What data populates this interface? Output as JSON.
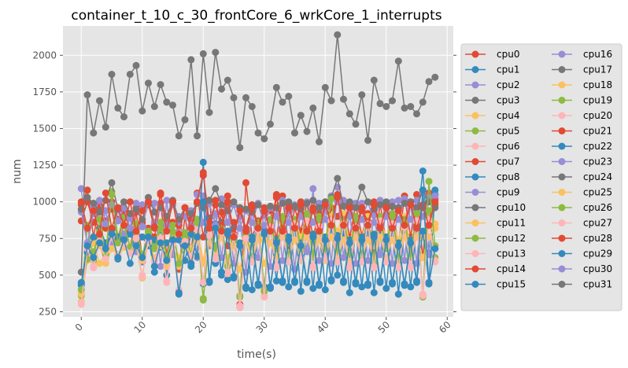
{
  "chart_data": {
    "type": "line",
    "title": "container_t_10_c_30_frontCore_6_wrkCore_1_interrupts",
    "xlabel": "time(s)",
    "ylabel": "num",
    "xlim": [
      -3,
      61
    ],
    "ylim": [
      215,
      2200
    ],
    "x_ticks": [
      0,
      10,
      20,
      30,
      40,
      50,
      60
    ],
    "y_ticks": [
      250,
      500,
      750,
      1000,
      1250,
      1500,
      1750,
      2000
    ],
    "grid": true,
    "legend_position": "right, outside plot, two columns",
    "x": [
      0,
      1,
      2,
      3,
      4,
      5,
      6,
      7,
      8,
      9,
      10,
      11,
      12,
      13,
      14,
      15,
      16,
      17,
      18,
      19,
      20,
      21,
      22,
      23,
      24,
      25,
      26,
      27,
      28,
      29,
      30,
      31,
      32,
      33,
      34,
      35,
      36,
      37,
      38,
      39,
      40,
      41,
      42,
      43,
      44,
      45,
      46,
      47,
      48,
      49,
      50,
      51,
      52,
      53,
      54,
      55,
      56,
      57,
      58
    ],
    "series": [
      {
        "name": "cpu0",
        "color": "#E24A33",
        "values": [
          980,
          1080,
          760,
          980,
          870,
          950,
          740,
          890,
          680,
          930,
          620,
          820,
          760,
          990,
          640,
          860,
          540,
          900,
          650,
          1060,
          760,
          1010,
          630,
          930,
          700,
          860,
          300,
          1130,
          760,
          870,
          910,
          940,
          750,
          1040,
          700,
          960,
          800,
          990,
          760,
          930,
          650,
          960,
          900,
          990,
          760,
          980,
          770,
          920,
          650,
          990,
          720,
          970,
          700,
          1040,
          760,
          1050,
          620,
          1060,
          980
        ]
      },
      {
        "name": "cpu1",
        "color": "#348ABD",
        "values": [
          430,
          650,
          640,
          820,
          720,
          770,
          610,
          760,
          650,
          800,
          590,
          750,
          520,
          770,
          500,
          740,
          370,
          700,
          560,
          880,
          440,
          890,
          580,
          860,
          470,
          820,
          280,
          780,
          400,
          820,
          420,
          840,
          460,
          870,
          420,
          850,
          390,
          830,
          410,
          860,
          400,
          840,
          500,
          790,
          380,
          820,
          420,
          830,
          380,
          800,
          410,
          840,
          370,
          830,
          420,
          840,
          1210,
          650,
          1080
        ]
      },
      {
        "name": "cpu2",
        "color": "#988ED5",
        "values": [
          1090,
          680,
          970,
          760,
          940,
          700,
          950,
          780,
          890,
          660,
          980,
          700,
          990,
          560,
          1010,
          640,
          900,
          700,
          940,
          620,
          1040,
          700,
          920,
          620,
          980,
          580,
          900,
          520,
          950,
          620,
          930,
          560,
          960,
          600,
          940,
          540,
          970,
          660,
          1090,
          600,
          960,
          580,
          1100,
          620,
          920,
          580,
          990,
          600,
          910,
          640,
          960,
          580,
          1010,
          600,
          1000,
          580,
          1060,
          640,
          1050
        ]
      },
      {
        "name": "cpu3",
        "color": "#777777",
        "values": [
          520,
          1730,
          1470,
          1690,
          1510,
          1870,
          1640,
          1580,
          1870,
          1930,
          1620,
          1810,
          1650,
          1800,
          1680,
          1660,
          1450,
          1560,
          1970,
          1450,
          2010,
          1610,
          2020,
          1770,
          1830,
          1710,
          1370,
          1710,
          1650,
          1470,
          1430,
          1530,
          1780,
          1680,
          1720,
          1470,
          1590,
          1480,
          1640,
          1410,
          1780,
          1690,
          2140,
          1700,
          1600,
          1530,
          1730,
          1420,
          1830,
          1670,
          1650,
          1690,
          1960,
          1640,
          1650,
          1600,
          1680,
          1820,
          1850
        ]
      },
      {
        "name": "cpu4",
        "color": "#FBC15E",
        "values": [
          320,
          610,
          720,
          580,
          650,
          760,
          620,
          690,
          820,
          710,
          480,
          780,
          600,
          720,
          560,
          760,
          620,
          720,
          680,
          800,
          600,
          850,
          650,
          800,
          620,
          720,
          700,
          820,
          690,
          760,
          740,
          820,
          660,
          860,
          720,
          880,
          760,
          900,
          720,
          840,
          690,
          900,
          800,
          920,
          720,
          880,
          760,
          900,
          700,
          880,
          760,
          880,
          740,
          900,
          700,
          900,
          760,
          920,
          850
        ]
      },
      {
        "name": "cpu5",
        "color": "#8EBA42",
        "values": [
          360,
          840,
          600,
          880,
          640,
          1070,
          760,
          900,
          680,
          850,
          600,
          800,
          700,
          860,
          620,
          840,
          560,
          790,
          640,
          880,
          340,
          800,
          700,
          840,
          580,
          780,
          360,
          800,
          620,
          860,
          400,
          880,
          700,
          900,
          640,
          880,
          700,
          920,
          640,
          900,
          700,
          1040,
          680,
          880,
          660,
          900,
          640,
          870,
          620,
          900,
          700,
          920,
          620,
          880,
          640,
          940,
          360,
          940,
          620
        ]
      },
      {
        "name": "cpu6",
        "color": "#FFB5B8",
        "values": [
          310,
          690,
          560,
          740,
          620,
          780,
          640,
          720,
          660,
          760,
          500,
          740,
          600,
          760,
          460,
          720,
          400,
          740,
          640,
          820,
          460,
          780,
          620,
          800,
          520,
          780,
          290,
          760,
          600,
          820,
          360,
          840,
          560,
          800,
          600,
          860,
          620,
          880,
          560,
          840,
          620,
          880,
          600,
          860,
          560,
          840,
          600,
          860,
          560,
          880,
          600,
          860,
          560,
          840,
          560,
          880,
          370,
          880,
          600
        ]
      },
      {
        "name": "cpu7",
        "color": "#E24A33",
        "values": [
          870,
          1000,
          860,
          960,
          820,
          1000,
          880,
          940,
          800,
          960,
          860,
          980,
          820,
          1050,
          880,
          1000,
          840,
          960,
          880,
          1000,
          1180,
          860,
          980,
          840,
          1040,
          780,
          960,
          820,
          980,
          840,
          960,
          820,
          1050,
          820,
          980,
          840,
          1000,
          820,
          960,
          820,
          1000,
          860,
          1050,
          860,
          980,
          840,
          960,
          860,
          1000,
          840,
          980,
          840,
          960,
          860,
          1000,
          840,
          980,
          860,
          1020
        ]
      },
      {
        "name": "cpu8",
        "color": "#348ABD",
        "values": [
          440,
          660,
          760,
          730,
          700,
          810,
          760,
          740,
          780,
          720,
          760,
          700,
          740,
          690,
          720,
          710,
          740,
          600,
          780,
          630,
          1270,
          450,
          850,
          500,
          800,
          480,
          720,
          420,
          760,
          440,
          800,
          420,
          740,
          460,
          760,
          460,
          720,
          460,
          780,
          440,
          760,
          470,
          770,
          460,
          740,
          450,
          760,
          440,
          780,
          460,
          760,
          450,
          720,
          440,
          740,
          460,
          800,
          450,
          1050
        ]
      },
      {
        "name": "cpu9",
        "color": "#988ED5",
        "values": [
          930,
          720,
          920,
          1010,
          850,
          980,
          870,
          960,
          820,
          990,
          830,
          1000,
          860,
          960,
          840,
          980,
          860,
          900,
          840,
          1050,
          860,
          990,
          840,
          1020,
          860,
          980,
          820,
          940,
          860,
          990,
          840,
          960,
          900,
          1010,
          860,
          980,
          900,
          1000,
          860,
          990,
          880,
          1040,
          1000,
          1010,
          900,
          990,
          880,
          1000,
          860,
          1010,
          900,
          1000,
          880,
          1020,
          880,
          1010,
          900,
          1030,
          1040
        ]
      },
      {
        "name": "cpu10",
        "color": "#777777",
        "values": [
          950,
          1030,
          990,
          930,
          1010,
          1130,
          950,
          1000,
          920,
          950,
          880,
          1030,
          930,
          960,
          900,
          1010,
          880,
          960,
          920,
          990,
          960,
          1010,
          1090,
          980,
          940,
          1000,
          960,
          950,
          930,
          980,
          940,
          970,
          960,
          990,
          1000,
          970,
          950,
          990,
          1010,
          960,
          1000,
          1030,
          1160,
          970,
          1000,
          960,
          1100,
          1000,
          950,
          980,
          1000,
          970,
          960,
          990,
          1000,
          960,
          1080,
          1000,
          960
        ]
      },
      {
        "name": "cpu11",
        "color": "#FBC15E",
        "values": [
          370,
          600,
          640,
          700,
          580,
          680,
          640,
          720,
          660,
          700,
          600,
          720,
          620,
          700,
          580,
          700,
          560,
          680,
          620,
          740,
          580,
          720,
          620,
          760,
          580,
          700,
          540,
          720,
          600,
          740,
          580,
          720,
          620,
          760,
          620,
          740,
          600,
          760,
          620,
          740,
          600,
          760,
          620,
          740,
          600,
          760,
          620,
          740,
          600,
          760,
          620,
          740,
          600,
          760,
          620,
          760,
          620,
          760,
          820
        ]
      },
      {
        "name": "cpu12",
        "color": "#8EBA42",
        "values": [
          400,
          610,
          660,
          800,
          640,
          1050,
          720,
          840,
          690,
          800,
          640,
          780,
          680,
          820,
          620,
          800,
          580,
          760,
          640,
          860,
          330,
          760,
          680,
          820,
          560,
          740,
          350,
          780,
          600,
          840,
          390,
          860,
          680,
          880,
          620,
          860,
          680,
          900,
          620,
          880,
          680,
          1020,
          660,
          860,
          640,
          880,
          620,
          850,
          600,
          880,
          680,
          900,
          600,
          860,
          620,
          920,
          350,
          1140,
          700
        ]
      },
      {
        "name": "cpu13",
        "color": "#FFB5B8",
        "values": [
          300,
          680,
          550,
          730,
          610,
          770,
          630,
          710,
          650,
          750,
          490,
          730,
          590,
          750,
          450,
          710,
          390,
          730,
          630,
          810,
          450,
          770,
          610,
          790,
          510,
          770,
          280,
          750,
          590,
          810,
          350,
          830,
          550,
          790,
          590,
          850,
          610,
          870,
          550,
          830,
          610,
          870,
          590,
          850,
          550,
          830,
          590,
          850,
          550,
          870,
          590,
          850,
          550,
          830,
          550,
          870,
          360,
          870,
          590
        ]
      },
      {
        "name": "cpu14",
        "color": "#E24A33",
        "values": [
          1000,
          820,
          940,
          780,
          1060,
          820,
          960,
          840,
          1000,
          800,
          940,
          1000,
          830,
          1060,
          800,
          1000,
          780,
          960,
          820,
          1000,
          1200,
          820,
          1010,
          800,
          1000,
          760,
          940,
          800,
          960,
          820,
          940,
          800,
          1030,
          800,
          960,
          820,
          980,
          800,
          940,
          800,
          980,
          840,
          1030,
          840,
          960,
          820,
          940,
          840,
          980,
          820,
          960,
          820,
          940,
          840,
          980,
          820,
          960,
          840,
          1000
        ]
      },
      {
        "name": "cpu15",
        "color": "#348ABD",
        "values": [
          450,
          700,
          620,
          720,
          680,
          780,
          620,
          740,
          580,
          700,
          620,
          760,
          560,
          720,
          600,
          740,
          380,
          700,
          580,
          760,
          1000,
          460,
          820,
          520,
          780,
          490,
          700,
          410,
          740,
          430,
          780,
          410,
          720,
          450,
          740,
          450,
          700,
          450,
          760,
          430,
          740,
          460,
          750,
          450,
          720,
          440,
          740,
          430,
          760,
          450,
          740,
          440,
          700,
          430,
          720,
          450,
          1080,
          440,
          680
        ]
      }
    ]
  }
}
